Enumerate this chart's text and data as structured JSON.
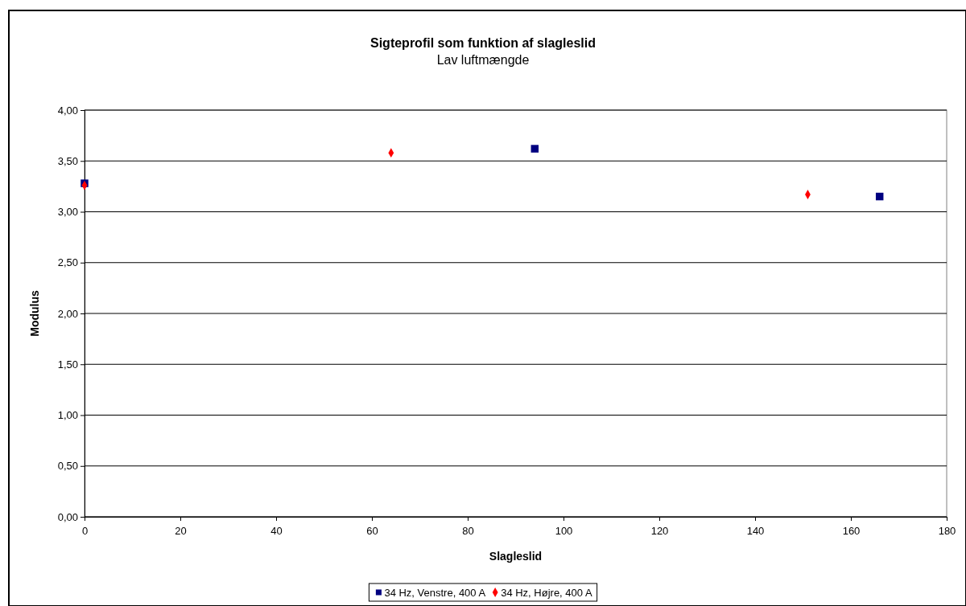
{
  "chart_data": {
    "type": "scatter",
    "title": "Sigteprofil som funktion af slagleslid",
    "subtitle": "Lav luftmængde",
    "xlabel": "Slagleslid",
    "ylabel": "Modulus",
    "xlim": [
      0,
      180
    ],
    "xticks": [
      0,
      20,
      40,
      60,
      80,
      100,
      120,
      140,
      160,
      180
    ],
    "ylim": [
      0,
      4
    ],
    "yticks": [
      {
        "value": 0,
        "label": "0,00"
      },
      {
        "value": 0.5,
        "label": "0,50"
      },
      {
        "value": 1,
        "label": "1,00"
      },
      {
        "value": 1.5,
        "label": "1,50"
      },
      {
        "value": 2,
        "label": "2,00"
      },
      {
        "value": 2.5,
        "label": "2,50"
      },
      {
        "value": 3,
        "label": "3,00"
      },
      {
        "value": 3.5,
        "label": "3,50"
      },
      {
        "value": 4,
        "label": "4,00"
      }
    ],
    "grid": "y",
    "legend": "bottom",
    "series": [
      {
        "name": "34 Hz, Venstre, 400 A",
        "color": "#000080",
        "marker": "square",
        "x": [
          0,
          94,
          166
        ],
        "values": [
          3.28,
          3.62,
          3.15
        ]
      },
      {
        "name": "34 Hz, Højre, 400 A",
        "color": "#ff0000",
        "marker": "diamond",
        "x": [
          0,
          64,
          151
        ],
        "values": [
          3.26,
          3.58,
          3.17
        ]
      }
    ]
  }
}
